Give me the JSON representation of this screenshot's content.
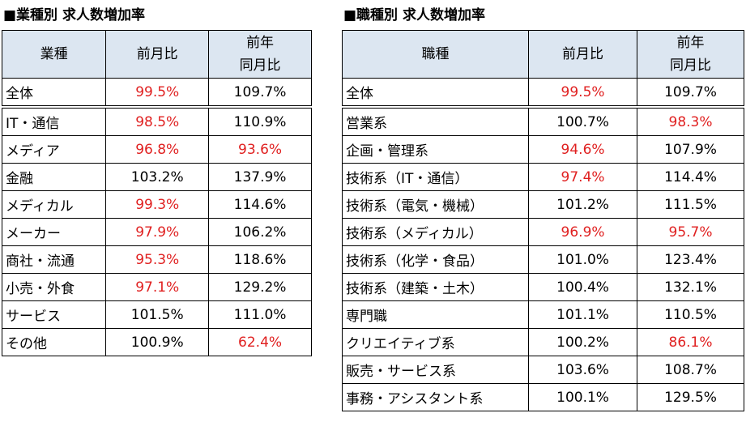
{
  "left": {
    "title": "■業種別 求人数増加率",
    "headers": [
      [
        "業種"
      ],
      [
        "前月比"
      ],
      [
        "前年",
        "同月比"
      ]
    ],
    "rows": [
      [
        "全体",
        "99.5%",
        "109.7%"
      ],
      [
        "IT・通信",
        "98.5%",
        "110.9%"
      ],
      [
        "メディア",
        "96.8%",
        "93.6%"
      ],
      [
        "金融",
        "103.2%",
        "137.9%"
      ],
      [
        "メディカル",
        "99.3%",
        "114.6%"
      ],
      [
        "メーカー",
        "97.9%",
        "106.2%"
      ],
      [
        "商社・流通",
        "95.3%",
        "118.6%"
      ],
      [
        "小売・外食",
        "97.1%",
        "129.2%"
      ],
      [
        "サービス",
        "101.5%",
        "111.0%"
      ],
      [
        "その他",
        "100.9%",
        "62.4%"
      ]
    ]
  },
  "right": {
    "title": "■職種別 求人数増加率",
    "headers": [
      [
        "職種"
      ],
      [
        "前月比"
      ],
      [
        "前年",
        "同月比"
      ]
    ],
    "rows": [
      [
        "全体",
        "99.5%",
        "109.7%"
      ],
      [
        "営業系",
        "100.7%",
        "98.3%"
      ],
      [
        "企画・管理系",
        "94.6%",
        "107.9%"
      ],
      [
        "技術系（IT・通信）",
        "97.4%",
        "114.4%"
      ],
      [
        "技術系（電気・機械）",
        "101.2%",
        "111.5%"
      ],
      [
        "技術系（メディカル）",
        "96.9%",
        "95.7%"
      ],
      [
        "技術系（化学・食品）",
        "101.0%",
        "123.4%"
      ],
      [
        "技術系（建築・土木）",
        "100.4%",
        "132.1%"
      ],
      [
        "専門職",
        "101.1%",
        "110.5%"
      ],
      [
        "クリエイティブ系",
        "100.2%",
        "86.1%"
      ],
      [
        "販売・サービス系",
        "103.6%",
        "108.7%"
      ],
      [
        "事務・アシスタント系",
        "100.1%",
        "129.5%"
      ]
    ]
  }
}
